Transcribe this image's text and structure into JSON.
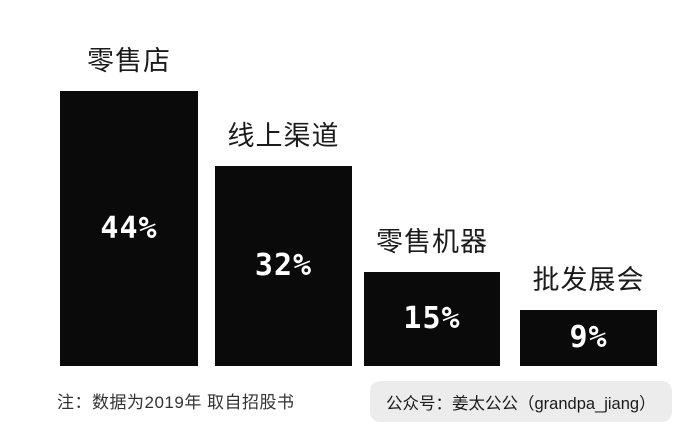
{
  "page": {
    "background": "#ffffff"
  },
  "chart_data": {
    "type": "bar",
    "orientation": "vertical",
    "title": "",
    "xlabel": "",
    "ylabel": "",
    "categories": [
      "零售店",
      "线上渠道",
      "零售机器",
      "批发展会"
    ],
    "values": [
      44,
      32,
      15,
      9
    ],
    "value_labels": [
      "44%",
      "32%",
      "15%",
      "9%"
    ],
    "ylim": [
      0,
      48
    ],
    "grid": false,
    "legend": "none",
    "axes_shown": false,
    "bar_color": "#0a0a0a",
    "value_label_color": "#ffffff",
    "category_label_color": "#1b1b1b"
  },
  "footnote": {
    "text": "注：数据为2019年 取自招股书",
    "color": "#333333"
  },
  "badge": {
    "text": "公众号：姜太公公（grandpa_jiang）",
    "background": "#ececec",
    "color": "#1b1b1b"
  }
}
